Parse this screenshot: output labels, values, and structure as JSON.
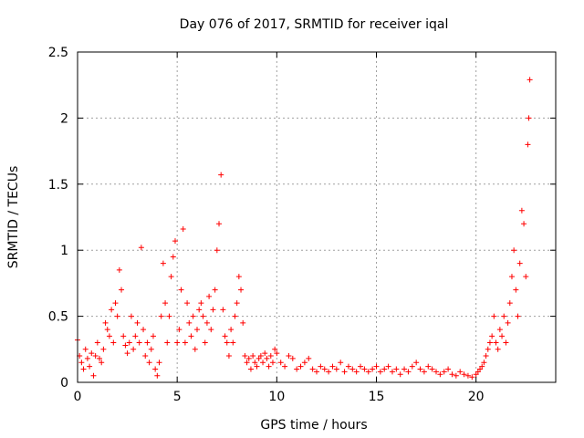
{
  "chart_data": {
    "type": "scatter",
    "title": "Day 076 of 2017, SRMTID for receiver iqal",
    "xlabel": "GPS time / hours",
    "ylabel": "SRMTID / TECUs",
    "xlim": [
      0,
      24
    ],
    "ylim": [
      0,
      2.5
    ],
    "xticks": [
      0,
      5,
      10,
      15,
      20
    ],
    "yticks": [
      0,
      0.5,
      1,
      1.5,
      2,
      2.5
    ],
    "xtick_labels": [
      "0",
      "5",
      "10",
      "15",
      "20"
    ],
    "ytick_labels": [
      "0",
      "0.5",
      "1",
      "1.5",
      "2",
      "2.5"
    ],
    "grid": true,
    "marker": "+",
    "series": [
      {
        "name": "SRMTID",
        "color": "#ff0000",
        "x": [
          0.0,
          0.1,
          0.2,
          0.3,
          0.4,
          0.5,
          0.6,
          0.7,
          0.8,
          0.9,
          1.0,
          1.1,
          1.2,
          1.3,
          1.4,
          1.5,
          1.6,
          1.7,
          1.8,
          1.9,
          2.0,
          2.1,
          2.2,
          2.3,
          2.4,
          2.5,
          2.6,
          2.7,
          2.8,
          2.9,
          3.0,
          3.1,
          3.2,
          3.3,
          3.4,
          3.5,
          3.6,
          3.7,
          3.8,
          3.9,
          4.0,
          4.1,
          4.2,
          4.3,
          4.4,
          4.5,
          4.6,
          4.7,
          4.8,
          4.9,
          5.0,
          5.1,
          5.2,
          5.3,
          5.4,
          5.5,
          5.6,
          5.7,
          5.8,
          5.9,
          6.0,
          6.1,
          6.2,
          6.3,
          6.4,
          6.5,
          6.6,
          6.7,
          6.8,
          6.9,
          7.0,
          7.1,
          7.2,
          7.3,
          7.4,
          7.5,
          7.6,
          7.7,
          7.8,
          7.9,
          8.0,
          8.1,
          8.2,
          8.3,
          8.4,
          8.5,
          8.6,
          8.7,
          8.8,
          8.9,
          9.0,
          9.1,
          9.2,
          9.3,
          9.4,
          9.5,
          9.6,
          9.7,
          9.8,
          9.9,
          10.0,
          10.2,
          10.4,
          10.6,
          10.8,
          11.0,
          11.2,
          11.4,
          11.6,
          11.8,
          12.0,
          12.2,
          12.4,
          12.6,
          12.8,
          13.0,
          13.2,
          13.4,
          13.6,
          13.8,
          14.0,
          14.2,
          14.4,
          14.6,
          14.8,
          15.0,
          15.2,
          15.4,
          15.6,
          15.8,
          16.0,
          16.2,
          16.4,
          16.6,
          16.8,
          17.0,
          17.2,
          17.4,
          17.6,
          17.8,
          18.0,
          18.2,
          18.4,
          18.6,
          18.8,
          19.0,
          19.2,
          19.4,
          19.6,
          19.8,
          20.0,
          20.1,
          20.2,
          20.3,
          20.4,
          20.5,
          20.6,
          20.7,
          20.8,
          20.9,
          21.0,
          21.1,
          21.2,
          21.3,
          21.4,
          21.5,
          21.6,
          21.7,
          21.8,
          21.9,
          22.0,
          22.1,
          22.2,
          22.3,
          22.4,
          22.5,
          22.6,
          22.65,
          22.7
        ],
        "y": [
          0.32,
          0.2,
          0.15,
          0.1,
          0.25,
          0.18,
          0.12,
          0.22,
          0.05,
          0.2,
          0.3,
          0.18,
          0.15,
          0.25,
          0.45,
          0.4,
          0.35,
          0.55,
          0.3,
          0.6,
          0.5,
          0.85,
          0.7,
          0.35,
          0.28,
          0.22,
          0.3,
          0.5,
          0.25,
          0.35,
          0.45,
          0.3,
          1.02,
          0.4,
          0.2,
          0.3,
          0.15,
          0.25,
          0.35,
          0.1,
          0.05,
          0.15,
          0.5,
          0.9,
          0.6,
          0.3,
          0.5,
          0.8,
          0.95,
          1.07,
          0.3,
          0.4,
          0.7,
          1.16,
          0.3,
          0.6,
          0.45,
          0.35,
          0.5,
          0.25,
          0.4,
          0.55,
          0.6,
          0.5,
          0.3,
          0.45,
          0.65,
          0.4,
          0.55,
          0.7,
          1.0,
          1.2,
          1.57,
          0.55,
          0.35,
          0.3,
          0.2,
          0.4,
          0.3,
          0.5,
          0.6,
          0.8,
          0.7,
          0.45,
          0.2,
          0.15,
          0.18,
          0.1,
          0.2,
          0.15,
          0.12,
          0.18,
          0.2,
          0.15,
          0.22,
          0.18,
          0.12,
          0.2,
          0.15,
          0.25,
          0.22,
          0.15,
          0.12,
          0.2,
          0.18,
          0.1,
          0.12,
          0.15,
          0.18,
          0.1,
          0.08,
          0.12,
          0.1,
          0.08,
          0.12,
          0.1,
          0.15,
          0.08,
          0.12,
          0.1,
          0.08,
          0.12,
          0.1,
          0.08,
          0.1,
          0.12,
          0.08,
          0.1,
          0.12,
          0.08,
          0.1,
          0.06,
          0.1,
          0.08,
          0.12,
          0.15,
          0.1,
          0.08,
          0.12,
          0.1,
          0.08,
          0.06,
          0.08,
          0.1,
          0.06,
          0.05,
          0.08,
          0.06,
          0.05,
          0.04,
          0.06,
          0.08,
          0.1,
          0.12,
          0.15,
          0.2,
          0.25,
          0.3,
          0.35,
          0.5,
          0.3,
          0.25,
          0.4,
          0.35,
          0.5,
          0.3,
          0.45,
          0.6,
          0.8,
          1.0,
          0.7,
          0.5,
          0.9,
          1.3,
          1.2,
          0.8,
          1.8,
          2.0,
          2.29
        ]
      }
    ]
  }
}
